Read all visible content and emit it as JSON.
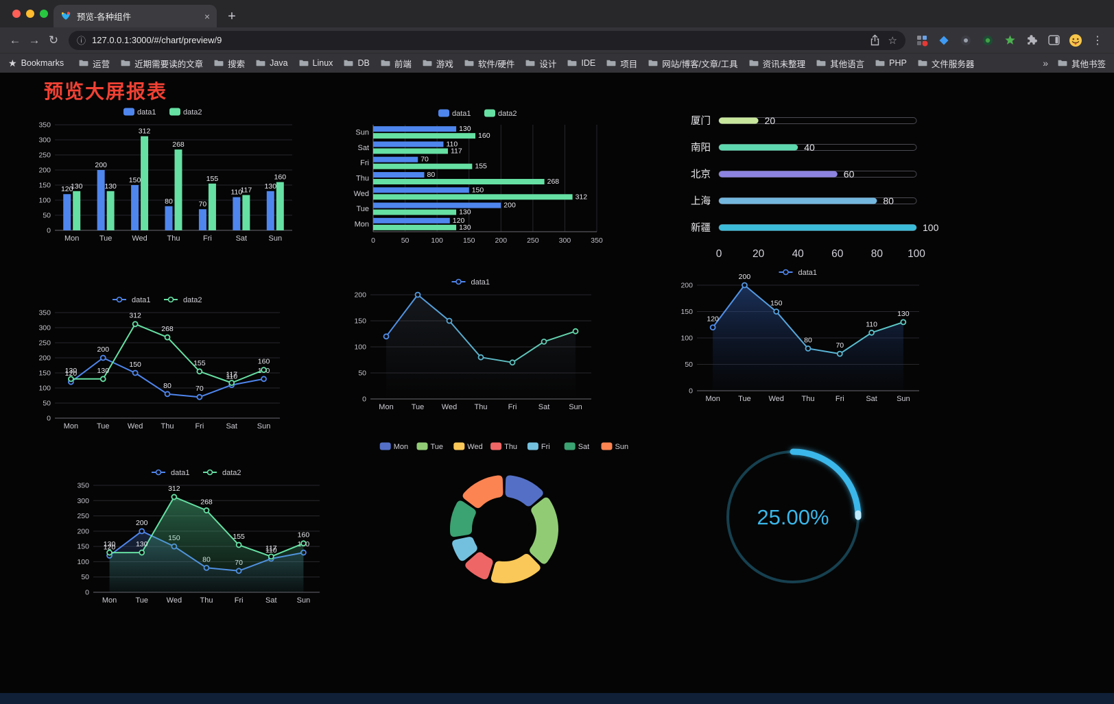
{
  "browser": {
    "traffic_lights": [
      "#ff5f57",
      "#febc2e",
      "#28c840"
    ],
    "tab_title": "预览-各种组件",
    "url": "127.0.0.1:3000/#/chart/preview/9",
    "glyphs": {
      "close_tab": "×",
      "new_tab": "+",
      "back": "←",
      "forward": "→",
      "reload": "↻",
      "info": "ⓘ",
      "star": "☆",
      "bookmarks_star": "★",
      "menu_dots": "⋮",
      "overflow_chevron": "»"
    },
    "bookmarks_label": "Bookmarks",
    "bookmarks": [
      "运营",
      "近期需要读的文章",
      "搜索",
      "Java",
      "Linux",
      "DB",
      "前端",
      "游戏",
      "软件/硬件",
      "设计",
      "IDE",
      "项目",
      "网站/博客/文章/工具",
      "资讯未整理",
      "其他语言",
      "PHP",
      "文件服务器"
    ],
    "other_bookmarks": "其他书签"
  },
  "page": {
    "title": "预览大屏报表",
    "title_color": "#f04134"
  },
  "chart_data": [
    {
      "type": "bar",
      "categories": [
        "Mon",
        "Tue",
        "Wed",
        "Thu",
        "Fri",
        "Sat",
        "Sun"
      ],
      "series": [
        {
          "name": "data1",
          "color": "#4f86ee",
          "values": [
            120,
            200,
            150,
            80,
            70,
            110,
            130
          ]
        },
        {
          "name": "data2",
          "color": "#66e0a3",
          "values": [
            130,
            130,
            312,
            268,
            155,
            117,
            160
          ]
        }
      ],
      "ylim": [
        0,
        350
      ],
      "ytick_step": 50
    },
    {
      "type": "hbar",
      "categories": [
        "Mon",
        "Tue",
        "Wed",
        "Thu",
        "Fri",
        "Sat",
        "Sun"
      ],
      "series": [
        {
          "name": "data1",
          "color": "#4f86ee",
          "values": [
            120,
            200,
            150,
            80,
            70,
            110,
            130
          ]
        },
        {
          "name": "data2",
          "color": "#66e0a3",
          "values": [
            130,
            130,
            312,
            268,
            155,
            117,
            160
          ]
        }
      ],
      "xlim": [
        0,
        350
      ],
      "xtick_step": 50
    },
    {
      "type": "progress",
      "max": 100,
      "xticks": [
        0,
        20,
        40,
        60,
        80,
        100
      ],
      "items": [
        {
          "label": "厦门",
          "value": 20,
          "color": "#c8e79c"
        },
        {
          "label": "南阳",
          "value": 40,
          "color": "#5ed8ae"
        },
        {
          "label": "北京",
          "value": 60,
          "color": "#8c83e0"
        },
        {
          "label": "上海",
          "value": 80,
          "color": "#73b7de"
        },
        {
          "label": "新疆",
          "value": 100,
          "color": "#3cbcd9"
        }
      ]
    },
    {
      "type": "line",
      "categories": [
        "Mon",
        "Tue",
        "Wed",
        "Thu",
        "Fri",
        "Sat",
        "Sun"
      ],
      "series": [
        {
          "name": "data1",
          "color": "#4f86ee",
          "values": [
            120,
            200,
            150,
            80,
            70,
            110,
            130
          ]
        },
        {
          "name": "data2",
          "color": "#66e0a3",
          "values": [
            130,
            130,
            312,
            268,
            155,
            117,
            160
          ]
        }
      ],
      "ylim": [
        0,
        350
      ],
      "ytick_step": 50
    },
    {
      "type": "line",
      "categories": [
        "Mon",
        "Tue",
        "Wed",
        "Thu",
        "Fri",
        "Sat",
        "Sun"
      ],
      "show_labels": false,
      "series": [
        {
          "name": "data1",
          "gradient": [
            "#4f86ee",
            "#66e0a3"
          ],
          "area": [
            "rgba(100,120,150,0.16)",
            "rgba(100,120,150,0)"
          ],
          "values": [
            120,
            200,
            150,
            80,
            70,
            110,
            130
          ]
        }
      ],
      "ylim": [
        0,
        200
      ],
      "ytick_step": 50
    },
    {
      "type": "line",
      "categories": [
        "Mon",
        "Tue",
        "Wed",
        "Thu",
        "Fri",
        "Sat",
        "Sun"
      ],
      "series": [
        {
          "name": "data1",
          "gradient": [
            "#4f86ee",
            "#5fd3c2"
          ],
          "area": [
            "rgba(45,85,160,0.55)",
            "rgba(25,45,90,0.04)"
          ],
          "values": [
            120,
            200,
            150,
            80,
            70,
            110,
            130
          ]
        }
      ],
      "ylim": [
        0,
        200
      ],
      "ytick_step": 50
    },
    {
      "type": "line",
      "categories": [
        "Mon",
        "Tue",
        "Wed",
        "Thu",
        "Fri",
        "Sat",
        "Sun"
      ],
      "series": [
        {
          "name": "data1",
          "color": "#4f86ee",
          "area": [
            "rgba(70,110,190,0.30)",
            "rgba(70,110,190,0.03)"
          ],
          "values": [
            120,
            200,
            150,
            80,
            70,
            110,
            130
          ]
        },
        {
          "name": "data2",
          "color": "#66e0a3",
          "area": [
            "rgba(80,200,140,0.45)",
            "rgba(80,200,140,0.04)"
          ],
          "values": [
            130,
            130,
            312,
            268,
            155,
            117,
            160
          ]
        }
      ],
      "ylim": [
        0,
        350
      ],
      "ytick_step": 50
    },
    {
      "type": "pie",
      "items": [
        {
          "name": "Mon",
          "value": 120,
          "color": "#5470c6"
        },
        {
          "name": "Tue",
          "value": 200,
          "color": "#91cc75"
        },
        {
          "name": "Wed",
          "value": 150,
          "color": "#fac858"
        },
        {
          "name": "Thu",
          "value": 80,
          "color": "#ee6666"
        },
        {
          "name": "Fri",
          "value": 70,
          "color": "#73c0de"
        },
        {
          "name": "Sat",
          "value": 110,
          "color": "#3ba272"
        },
        {
          "name": "Sun",
          "value": 130,
          "color": "#fc8452"
        }
      ]
    },
    {
      "type": "gauge",
      "value": 25,
      "label": "25.00%",
      "color": "#3ab7ea",
      "track_color": "#16404f"
    }
  ]
}
